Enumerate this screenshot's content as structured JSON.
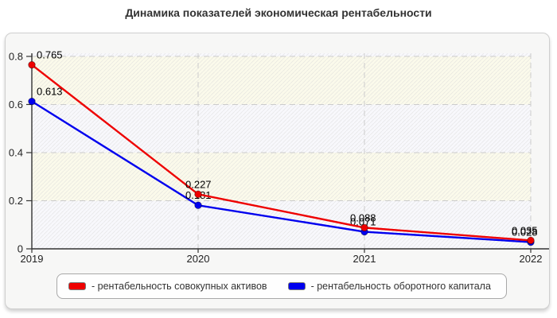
{
  "title": "Динамика показателей экономическая рентабельности",
  "colors": {
    "series_red": "#ee0000",
    "series_blue": "#0000ee",
    "grid": "#cccccc",
    "axis": "#333333",
    "band_cream": "#fbfaeb",
    "band_ghost": "#f8f8fc"
  },
  "chart_data": {
    "type": "line",
    "title": "Динамика показателей экономическая рентабельности",
    "x": [
      "2019",
      "2020",
      "2021",
      "2022"
    ],
    "series": [
      {
        "name": "рентабельность совокупных активов",
        "color": "#ee0000",
        "values": [
          0.765,
          0.227,
          0.088,
          0.035
        ],
        "point_labels": [
          "0.765",
          "0.227",
          "0.088",
          "0.035"
        ]
      },
      {
        "name": "рентабельность оборотного капитала",
        "color": "#0000ee",
        "values": [
          0.613,
          0.181,
          0.071,
          0.028
        ],
        "point_labels": [
          "0.613",
          "0.181",
          "0.071",
          "0.028"
        ]
      }
    ],
    "xlabel": "",
    "ylabel": "",
    "ylim": [
      0,
      0.813
    ],
    "yticks": [
      0,
      0.2,
      0.4,
      0.6,
      0.8
    ],
    "ytick_labels": [
      "0",
      "0.2",
      "0.4",
      "0.6",
      "0.8"
    ],
    "grid": true,
    "grid_style": "dashed",
    "legend_position": "bottom",
    "legend": [
      {
        "label": "- рентабельность совокупных активов",
        "color": "#ee0000"
      },
      {
        "label": "- рентабельность оборотного капитала",
        "color": "#0000ee"
      }
    ]
  }
}
